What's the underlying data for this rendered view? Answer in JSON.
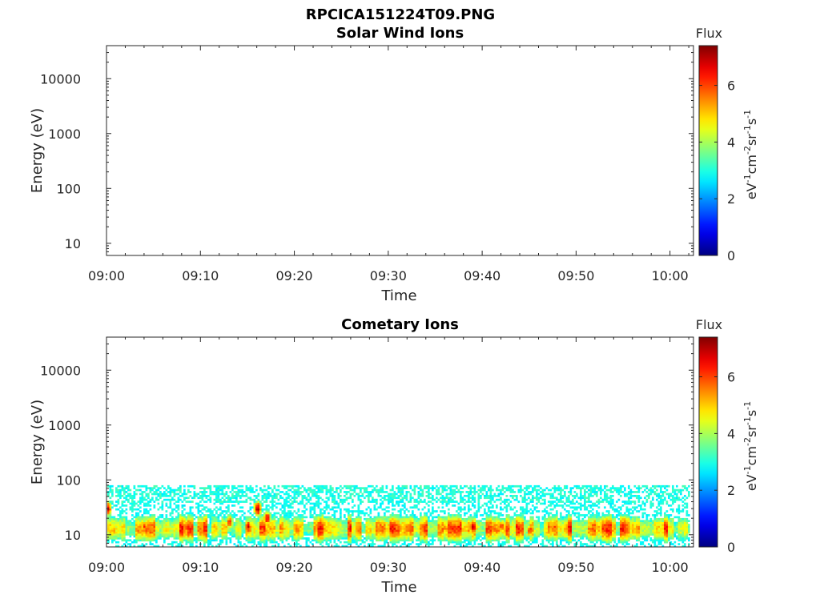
{
  "figure_title": "RPCICA151224T09.PNG",
  "chart_data": [
    {
      "type": "heatmap",
      "title": "Solar Wind Ions",
      "xlabel": "Time",
      "ylabel": "Energy (eV)",
      "yscale": "log",
      "ylim": [
        6,
        40000
      ],
      "xlim": [
        "09:00",
        "10:02:30"
      ],
      "x_ticks": [
        "09:00",
        "09:10",
        "09:20",
        "09:30",
        "09:40",
        "09:50",
        "10:00"
      ],
      "y_ticks": [
        10,
        100,
        1000,
        10000
      ],
      "y_tick_labels": [
        "10",
        "100",
        "1000",
        "10000"
      ],
      "colorbar": {
        "title": "Flux",
        "label": "eV-1cm-2sr-1s-1",
        "range": [
          0,
          7.4
        ],
        "ticks": [
          0,
          2,
          4,
          6
        ],
        "tick_labels": [
          "0",
          "2",
          "4",
          "6"
        ],
        "colormap": "jet"
      },
      "data_present": false
    },
    {
      "type": "heatmap",
      "title": "Cometary Ions",
      "xlabel": "Time",
      "ylabel": "Energy (eV)",
      "yscale": "log",
      "ylim": [
        6,
        40000
      ],
      "xlim": [
        "09:00",
        "10:02:30"
      ],
      "x_ticks": [
        "09:00",
        "09:10",
        "09:20",
        "09:30",
        "09:40",
        "09:50",
        "10:00"
      ],
      "y_ticks": [
        10,
        100,
        1000,
        10000
      ],
      "y_tick_labels": [
        "10",
        "100",
        "1000",
        "10000"
      ],
      "colorbar": {
        "title": "Flux",
        "label": "eV-1cm-2sr-1s-1",
        "range": [
          0,
          7.4
        ],
        "ticks": [
          0,
          2,
          4,
          6
        ],
        "tick_labels": [
          "0",
          "2",
          "4",
          "6"
        ],
        "colormap": "jet"
      },
      "data_present": true,
      "energy_band_eV": [
        6,
        80
      ],
      "peak_energy_eV": [
        10,
        40
      ],
      "peak_flux": 7,
      "hotspots": [
        {
          "time": "09:00",
          "energy_eV": 30,
          "flux": 7.0
        },
        {
          "time": "09:04",
          "energy_eV": 14,
          "flux": 6.0
        },
        {
          "time": "09:13",
          "energy_eV": 17,
          "flux": 6.0
        },
        {
          "time": "09:15",
          "energy_eV": 14,
          "flux": 6.5
        },
        {
          "time": "09:16",
          "energy_eV": 30,
          "flux": 7.0
        },
        {
          "time": "09:17",
          "energy_eV": 20,
          "flux": 6.5
        },
        {
          "time": "09:29",
          "energy_eV": 14,
          "flux": 5.8
        },
        {
          "time": "09:39",
          "energy_eV": 14,
          "flux": 6.8
        },
        {
          "time": "09:42",
          "energy_eV": 14,
          "flux": 6.0
        },
        {
          "time": "09:45",
          "energy_eV": 12,
          "flux": 6.0
        },
        {
          "time": "09:47",
          "energy_eV": 13,
          "flux": 5.8
        }
      ]
    }
  ]
}
